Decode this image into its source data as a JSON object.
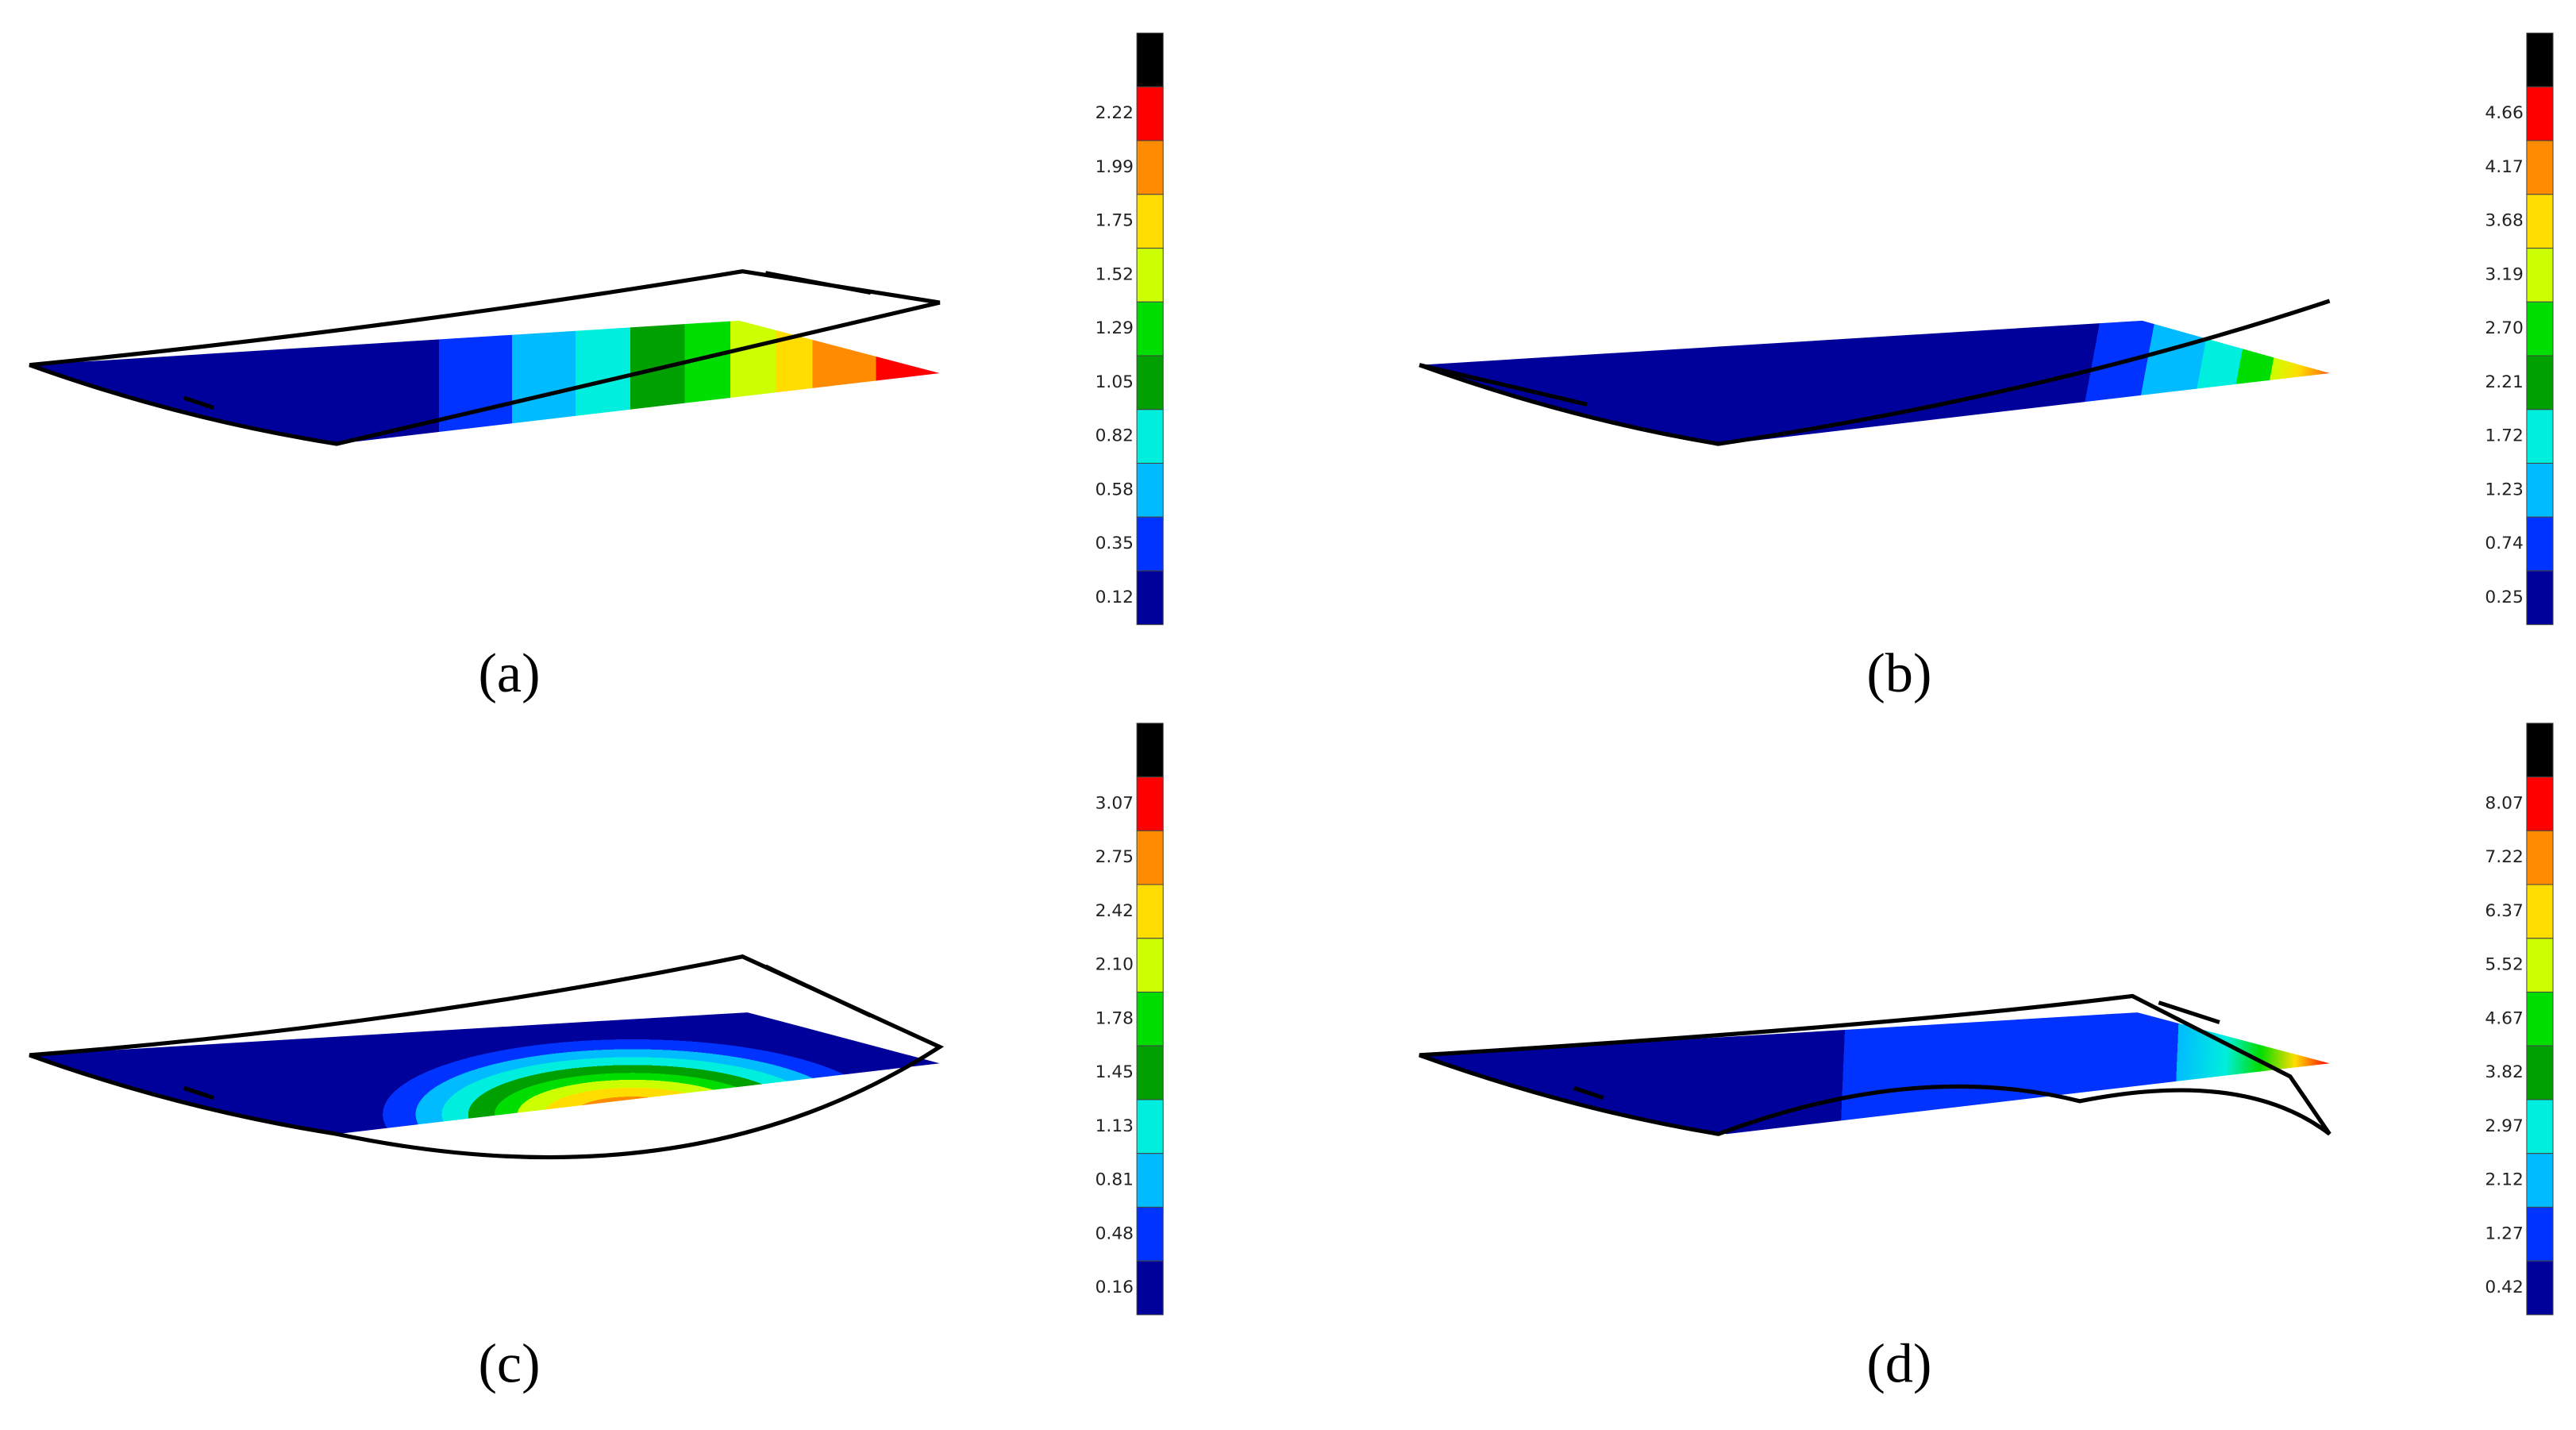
{
  "panels": [
    {
      "label": "(a)",
      "colorbar_labels": [
        "2.22",
        "1.99",
        "1.75",
        "1.52",
        "1.29",
        "1.05",
        "0.82",
        "0.58",
        "0.35",
        "0.12"
      ]
    },
    {
      "label": "(b)",
      "colorbar_labels": [
        "4.66",
        "4.17",
        "3.68",
        "3.19",
        "2.70",
        "2.21",
        "1.72",
        "1.23",
        "0.74",
        "0.25"
      ]
    },
    {
      "label": "(c)",
      "colorbar_labels": [
        "3.07",
        "2.75",
        "2.42",
        "2.10",
        "1.78",
        "1.45",
        "1.13",
        "0.81",
        "0.48",
        "0.16"
      ]
    },
    {
      "label": "(d)",
      "colorbar_labels": [
        "8.07",
        "7.22",
        "6.37",
        "5.52",
        "4.67",
        "3.82",
        "2.97",
        "2.12",
        "1.27",
        "0.42"
      ]
    }
  ]
}
